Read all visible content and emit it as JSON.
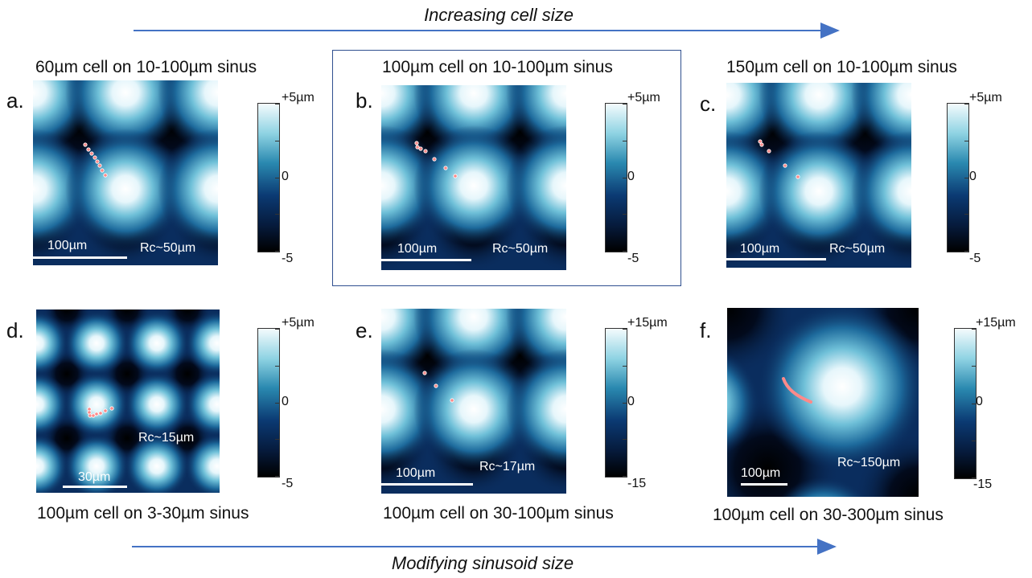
{
  "captions": {
    "top_arrow": "Increasing cell size",
    "bottom_arrow": "Modifying sinusoid size"
  },
  "colors": {
    "arrow": "#4472c4",
    "highlight_box": "#2f4f8f",
    "cell_track": "#ff8a8a"
  },
  "panels": [
    {
      "letter": "a.",
      "title": "60µm cell on 10-100µm sinus",
      "scale_label": "100µm",
      "rc_label": "Rc~50µm",
      "cbar_top": "+5µm",
      "cbar_mid": "0",
      "cbar_bottom": "-5"
    },
    {
      "letter": "b.",
      "title": "100µm cell on 10-100µm sinus",
      "scale_label": "100µm",
      "rc_label": "Rc~50µm",
      "cbar_top": "+5µm",
      "cbar_mid": "0",
      "cbar_bottom": "-5"
    },
    {
      "letter": "c.",
      "title": "150µm cell on 10-100µm sinus",
      "scale_label": "100µm",
      "rc_label": "Rc~50µm",
      "cbar_top": "+5µm",
      "cbar_mid": "0",
      "cbar_bottom": "-5"
    },
    {
      "letter": "d.",
      "title": "100µm cell on 3-30µm sinus",
      "scale_label": "30µm",
      "rc_label": "Rc~15µm",
      "cbar_top": "+5µm",
      "cbar_mid": "0",
      "cbar_bottom": "-5"
    },
    {
      "letter": "e.",
      "title": "100µm cell on 30-100µm sinus",
      "scale_label": "100µm",
      "rc_label": "Rc~17µm",
      "cbar_top": "+15µm",
      "cbar_mid": "0",
      "cbar_bottom": "-15"
    },
    {
      "letter": "f.",
      "title": "100µm cell on 30-300µm sinus",
      "scale_label": "100µm",
      "rc_label": "Rc~150µm",
      "cbar_top": "+15µm",
      "cbar_mid": "0",
      "cbar_bottom": "-15"
    }
  ]
}
